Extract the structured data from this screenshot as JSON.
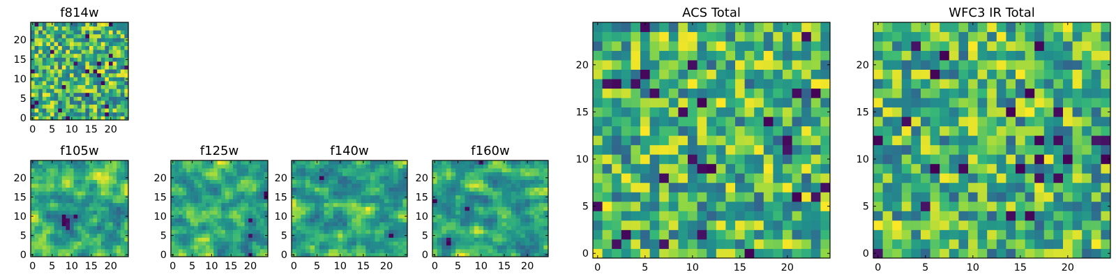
{
  "chart_data": [
    {
      "type": "heatmap",
      "title": "f814w",
      "grid_size": 25,
      "x_ticks": [
        0,
        5,
        10,
        15,
        20
      ],
      "y_ticks": [
        0,
        5,
        10,
        15,
        20
      ],
      "xlim": [
        -0.5,
        24.5
      ],
      "ylim": [
        -0.5,
        24.5
      ],
      "colormap": "viridis",
      "pattern": "fine-noise"
    },
    {
      "type": "heatmap",
      "title": "f105w",
      "grid_size": 25,
      "x_ticks": [
        0,
        5,
        10,
        15,
        20
      ],
      "y_ticks": [
        0,
        5,
        10,
        15,
        20
      ],
      "xlim": [
        -0.5,
        24.5
      ],
      "ylim": [
        -0.5,
        24.5
      ],
      "colormap": "viridis",
      "pattern": "smooth-noise"
    },
    {
      "type": "heatmap",
      "title": "f125w",
      "grid_size": 25,
      "x_ticks": [
        0,
        5,
        10,
        15,
        20
      ],
      "y_ticks": [
        0,
        5,
        10,
        15,
        20
      ],
      "xlim": [
        -0.5,
        24.5
      ],
      "ylim": [
        -0.5,
        24.5
      ],
      "colormap": "viridis",
      "pattern": "smooth-noise"
    },
    {
      "type": "heatmap",
      "title": "f140w",
      "grid_size": 25,
      "x_ticks": [
        0,
        5,
        10,
        15,
        20
      ],
      "y_ticks": [
        0,
        5,
        10,
        15,
        20
      ],
      "xlim": [
        -0.5,
        24.5
      ],
      "ylim": [
        -0.5,
        24.5
      ],
      "colormap": "viridis",
      "pattern": "smooth-noise"
    },
    {
      "type": "heatmap",
      "title": "f160w",
      "grid_size": 25,
      "x_ticks": [
        0,
        5,
        10,
        15,
        20
      ],
      "y_ticks": [
        0,
        5,
        10,
        15,
        20
      ],
      "xlim": [
        -0.5,
        24.5
      ],
      "ylim": [
        -0.5,
        24.5
      ],
      "colormap": "viridis",
      "pattern": "smooth-noise"
    },
    {
      "type": "heatmap",
      "title": "ACS Total",
      "grid_size": 25,
      "x_ticks": [
        0,
        5,
        10,
        15,
        20
      ],
      "y_ticks": [
        0,
        5,
        10,
        15,
        20
      ],
      "xlim": [
        -0.5,
        24.5
      ],
      "ylim": [
        -0.5,
        24.5
      ],
      "colormap": "viridis",
      "pattern": "fine-noise"
    },
    {
      "type": "heatmap",
      "title": "WFC3 IR Total",
      "grid_size": 25,
      "x_ticks": [
        0,
        5,
        10,
        15,
        20
      ],
      "y_ticks": [
        0,
        5,
        10,
        15,
        20
      ],
      "xlim": [
        -0.5,
        24.5
      ],
      "ylim": [
        -0.5,
        24.5
      ],
      "colormap": "viridis",
      "pattern": "fine-noise"
    }
  ]
}
